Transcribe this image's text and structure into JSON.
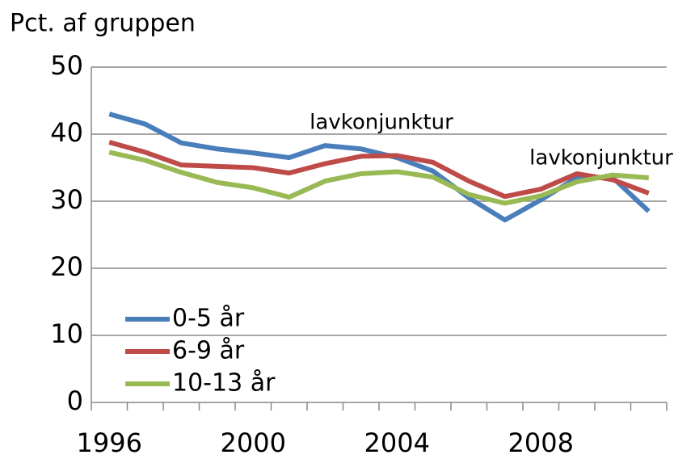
{
  "chart_data": {
    "type": "line",
    "y_axis_label": "Pct. af gruppen",
    "categories": [
      "1996",
      null,
      null,
      null,
      "2000",
      null,
      null,
      null,
      "2004",
      null,
      null,
      null,
      "2008",
      null,
      null,
      null
    ],
    "series": [
      {
        "name": "0-5 år",
        "color": "#4a7ebb",
        "values": [
          43,
          41.5,
          38.7,
          37.8,
          37.2,
          36.5,
          38.3,
          37.8,
          36.5,
          34.5,
          30.5,
          27.2,
          30.2,
          33.5,
          33.5,
          28.5
        ]
      },
      {
        "name": "6-9 år",
        "color": "#be4b48",
        "values": [
          38.8,
          37.3,
          35.4,
          35.2,
          35,
          34.2,
          35.6,
          36.7,
          36.8,
          35.8,
          33,
          30.7,
          31.8,
          34.1,
          33.2,
          31.2
        ]
      },
      {
        "name": "10-13 år",
        "color": "#98b954",
        "values": [
          37.3,
          36.1,
          34.3,
          32.8,
          32,
          30.6,
          33,
          34.1,
          34.4,
          33.6,
          31,
          29.7,
          30.8,
          32.9,
          33.9,
          33.5
        ]
      }
    ],
    "annotations": [
      "lavkonjunktur",
      "lavkonjunktur"
    ],
    "ylim": [
      0,
      50
    ],
    "yticks": [
      0,
      10,
      20,
      30,
      40,
      50
    ],
    "grid": true,
    "legend": "lower-left"
  }
}
